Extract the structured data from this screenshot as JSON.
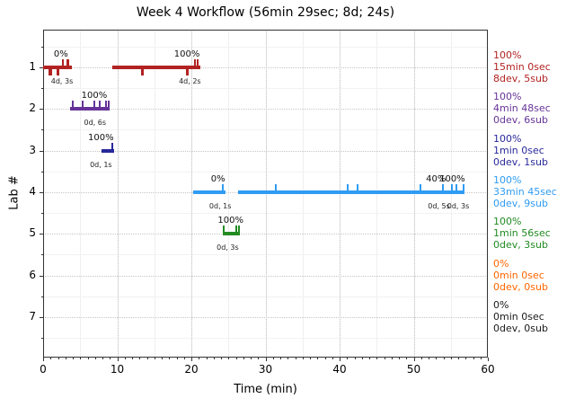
{
  "title": "Week 4 Workflow (56min 29sec; 8d; 24s)",
  "axes": {
    "xlabel": "Time (min)",
    "ylabel": "Lab #",
    "x_ticks": [
      0,
      10,
      20,
      30,
      40,
      50,
      60
    ],
    "y_ticks": [
      1,
      2,
      3,
      4,
      5,
      6,
      7
    ]
  },
  "chart_data": {
    "type": "gantt-timeline",
    "title": "Week 4 Workflow (56min 29sec; 8d; 24s)",
    "xlabel": "Time (min)",
    "ylabel": "Lab #",
    "xlim": [
      0,
      60
    ],
    "x_ticks": [
      0,
      10,
      20,
      30,
      40,
      50,
      60
    ],
    "labs": [
      1,
      2,
      3,
      4,
      5,
      6,
      7
    ],
    "grid": "major dotted, minor light",
    "series": [
      {
        "lab": 1,
        "color": "#B22222",
        "segments": [
          {
            "start": 0,
            "end": 3.9,
            "dev_ticks": [
              0.9,
              1.05,
              1.9,
              2.05
            ],
            "sub_ticks": [
              2.67,
              3.3,
              3.45
            ],
            "labels_above": [
              {
                "text": "0%",
                "t": 2.4
              }
            ],
            "labels_below": [
              {
                "text": "4d, 3s",
                "t": 2.55
              }
            ]
          },
          {
            "start": 9.33,
            "end": 21.2,
            "dev_ticks": [
              13.3,
              13.45,
              19.4,
              19.55
            ],
            "sub_ticks": [
              20.5,
              20.8
            ],
            "labels_above": [
              {
                "text": "100%",
                "t": 19.4
              }
            ],
            "labels_below": [
              {
                "text": "4d, 2s",
                "t": 19.8
              }
            ]
          }
        ]
      },
      {
        "lab": 2,
        "color": "#663399",
        "segments": [
          {
            "start": 3.6,
            "end": 9.0,
            "dev_ticks": [],
            "sub_ticks": [
              4.0,
              5.3,
              6.9,
              7.6,
              8.5,
              8.8
            ],
            "labels_above": [
              {
                "text": "100%",
                "t": 6.9
              }
            ],
            "labels_below": [
              {
                "text": "0d, 6s",
                "t": 7.0
              }
            ]
          }
        ]
      },
      {
        "lab": 3,
        "color": "#28289B",
        "segments": [
          {
            "start": 7.9,
            "end": 9.6,
            "dev_ticks": [],
            "sub_ticks": [
              9.35
            ],
            "labels_above": [
              {
                "text": "100%",
                "t": 7.8
              }
            ],
            "labels_below": [
              {
                "text": "0d, 1s",
                "t": 7.8
              }
            ]
          }
        ]
      },
      {
        "lab": 4,
        "color": "#2F9CF4",
        "segments": [
          {
            "start": 20.2,
            "end": 24.6,
            "dev_ticks": [],
            "sub_ticks": [
              24.2
            ],
            "labels_above": [
              {
                "text": "0%",
                "t": 23.6
              }
            ],
            "labels_below": [
              {
                "text": "0d, 1s",
                "t": 23.9
              }
            ]
          },
          {
            "start": 26.3,
            "end": 56.9,
            "dev_ticks": [],
            "sub_ticks": [
              31.4,
              41.1,
              42.4,
              50.9,
              53.9,
              55.2,
              55.8,
              56.7
            ],
            "labels_above": [
              {
                "text": "40%",
                "t": 53.0
              },
              {
                "text": "100%",
                "t": 55.2
              }
            ],
            "labels_below": [
              {
                "text": "0d, 5s",
                "t": 53.4
              },
              {
                "text": "0d, 3s",
                "t": 56.0
              }
            ]
          }
        ]
      },
      {
        "lab": 5,
        "color": "#228B22",
        "segments": [
          {
            "start": 24.2,
            "end": 26.5,
            "dev_ticks": [],
            "sub_ticks": [
              24.4,
              26.1,
              26.4
            ],
            "labels_above": [
              {
                "text": "100%",
                "t": 25.3
              }
            ],
            "labels_below": [
              {
                "text": "0d, 3s",
                "t": 24.9
              }
            ]
          }
        ]
      }
    ],
    "legend": [
      {
        "lab": 1,
        "color": "#B22222",
        "lines": [
          "100%",
          "15min 0sec",
          "8dev, 5sub"
        ]
      },
      {
        "lab": 2,
        "color": "#663399",
        "lines": [
          "100%",
          "4min 48sec",
          "0dev, 6sub"
        ]
      },
      {
        "lab": 3,
        "color": "#28289B",
        "lines": [
          "100%",
          "1min 0sec",
          "0dev, 1sub"
        ]
      },
      {
        "lab": 4,
        "color": "#2F9CF4",
        "lines": [
          "100%",
          "33min 45sec",
          "0dev, 9sub"
        ]
      },
      {
        "lab": 5,
        "color": "#228B22",
        "lines": [
          "100%",
          "1min 56sec",
          "0dev, 3sub"
        ]
      },
      {
        "lab": 6,
        "color": "#FF6600",
        "lines": [
          "0%",
          "0min 0sec",
          "0dev, 0sub"
        ]
      },
      {
        "lab": 7,
        "color": "#1A1A1A",
        "lines": [
          "0%",
          "0min 0sec",
          "0dev, 0sub"
        ]
      }
    ]
  }
}
